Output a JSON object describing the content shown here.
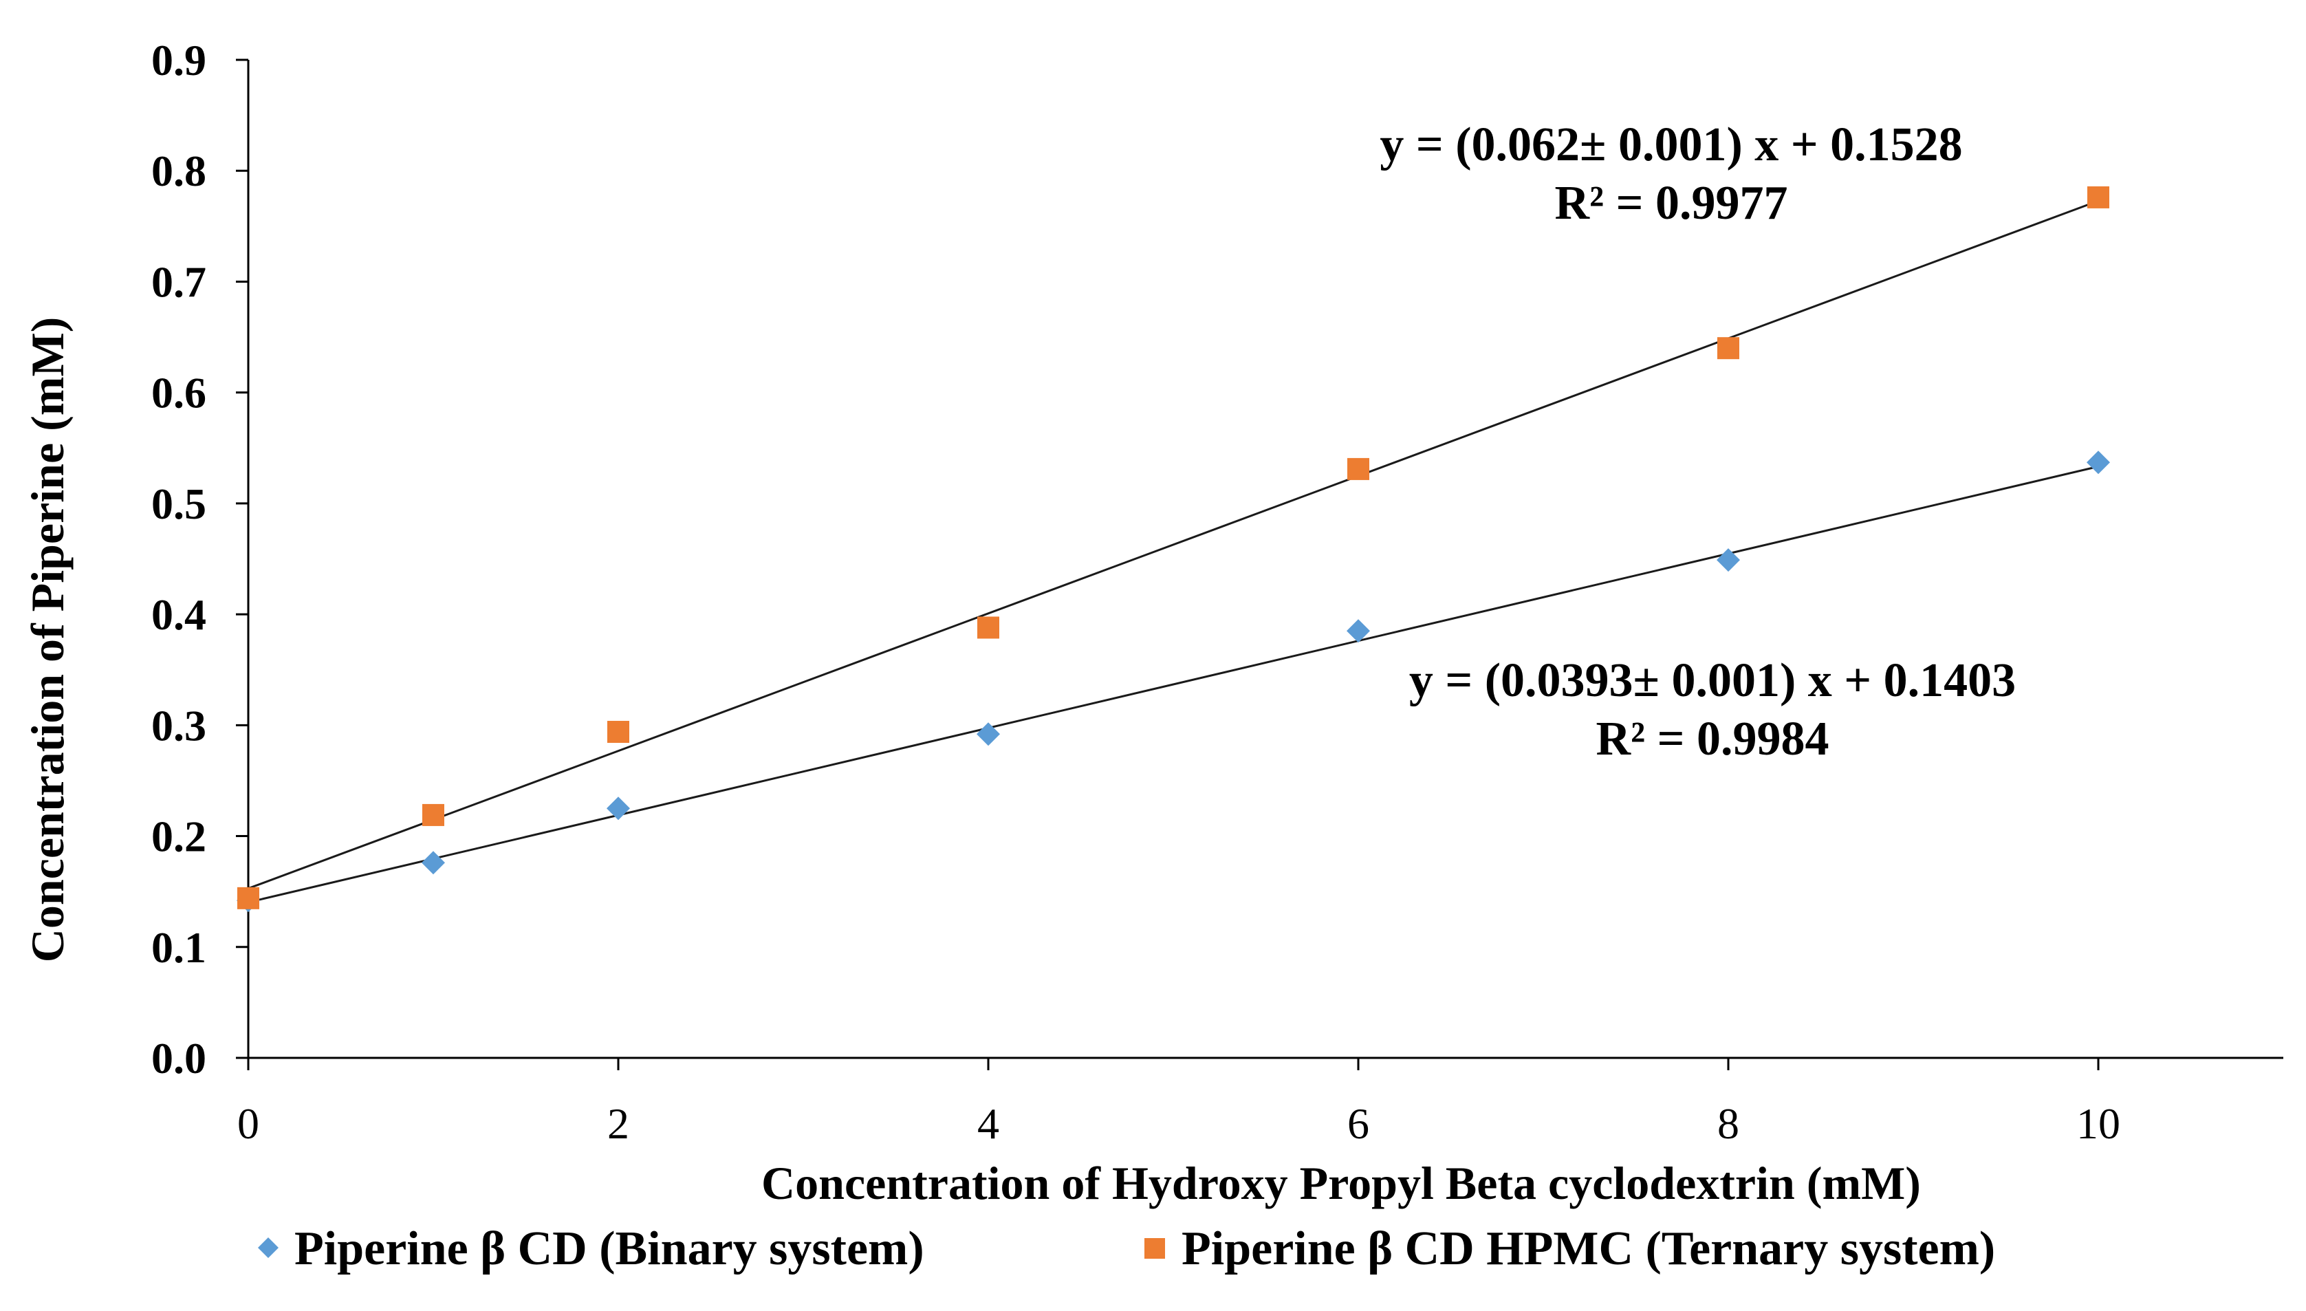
{
  "chart_data": {
    "type": "scatter",
    "xlabel": "Concentration  of Hydroxy  Propyl  Beta cyclodextrin  (mM)",
    "ylabel": "Concentration  of Piperine  (mM)",
    "xlim": [
      0,
      11
    ],
    "ylim": [
      0,
      0.9
    ],
    "xticks": [
      "0",
      "2",
      "4",
      "6",
      "8",
      "10"
    ],
    "yticks": [
      "0.0",
      "0.1",
      "0.2",
      "0.3",
      "0.4",
      "0.5",
      "0.6",
      "0.7",
      "0.8",
      "0.9"
    ],
    "grid": false,
    "legend_position": "bottom",
    "series": [
      {
        "name": "Piperine  β CD (Binary  system)",
        "marker": "diamond",
        "color": "#5B9BD5",
        "x": [
          0,
          1,
          2,
          4,
          6,
          8,
          10
        ],
        "y": [
          0.142,
          0.176,
          0.225,
          0.292,
          0.385,
          0.449,
          0.537
        ],
        "trendline": {
          "slope": 0.0393,
          "intercept": 0.1403,
          "equation": "y = (0.0393± 0.001) x + 0.1403",
          "r2": "R² = 0.9984"
        }
      },
      {
        "name": "Piperine  β CD HPMC (Ternary  system)",
        "marker": "square",
        "color": "#ED7D31",
        "x": [
          0,
          1,
          2,
          4,
          6,
          8,
          10
        ],
        "y": [
          0.144,
          0.219,
          0.294,
          0.388,
          0.531,
          0.64,
          0.776
        ],
        "trendline": {
          "slope": 0.062,
          "intercept": 0.1528,
          "equation": "y = (0.062± 0.001) x + 0.1528",
          "r2": "R² = 0.9977"
        }
      }
    ]
  }
}
